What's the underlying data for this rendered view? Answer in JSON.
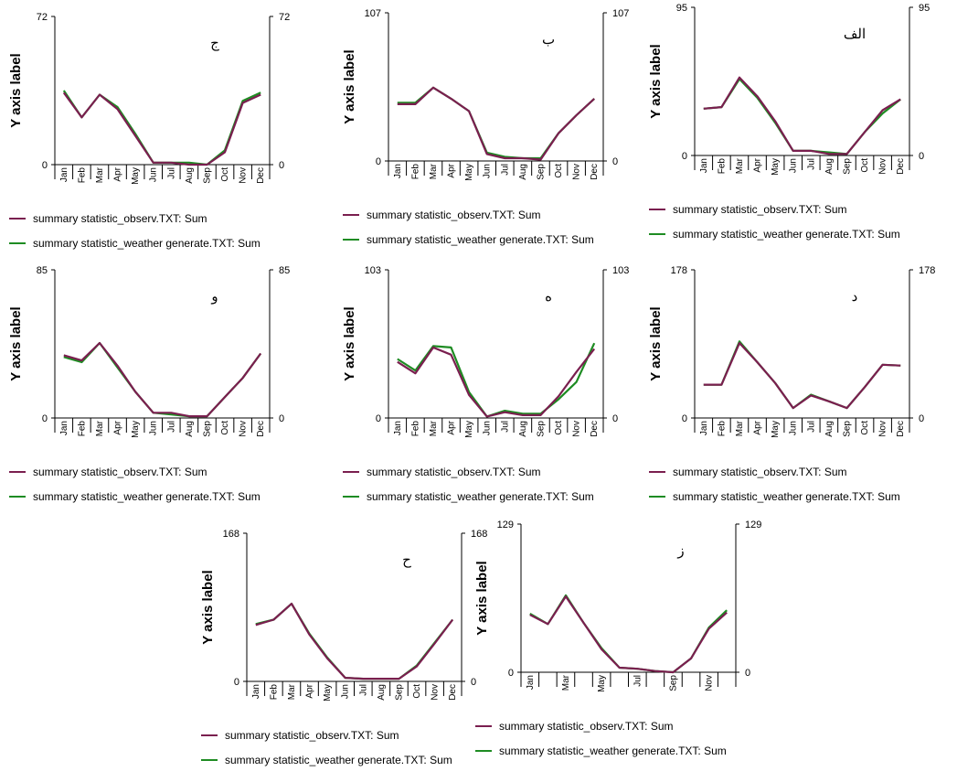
{
  "months": [
    "Jan",
    "Feb",
    "Mar",
    "Apr",
    "May",
    "Jun",
    "Jul",
    "Aug",
    "Sep",
    "Oct",
    "Nov",
    "Dec"
  ],
  "colors": {
    "observed": "#7a1f4f",
    "generated": "#1e8c23"
  },
  "chart_data": [
    {
      "type": "line",
      "panel_label": "ج",
      "ylabel": "Y axis label",
      "ylim": [
        0,
        72
      ],
      "y_ticks": [
        "0",
        "72"
      ],
      "y2_ticks": [
        "0",
        "72"
      ],
      "categories": [
        "Jan",
        "Feb",
        "Mar",
        "Apr",
        "May",
        "Jun",
        "Jul",
        "Aug",
        "Sep",
        "Oct",
        "Nov",
        "Dec"
      ],
      "legend_placement": "bottom",
      "series": [
        {
          "name": "summary statistic_observ.TXT: Sum",
          "color": "#7a1f4f",
          "values": [
            35,
            23,
            34,
            27,
            14,
            1,
            1,
            0,
            0,
            6,
            30,
            34
          ]
        },
        {
          "name": "summary statistic_weather generate.TXT: Sum",
          "color": "#1e8c23",
          "values": [
            36,
            23,
            34,
            28,
            15,
            1,
            1,
            1,
            0,
            7,
            31,
            35
          ]
        }
      ]
    },
    {
      "type": "line",
      "panel_label": "ب",
      "ylabel": "Y axis label",
      "ylim": [
        0,
        107
      ],
      "y_ticks": [
        "0",
        "107"
      ],
      "y2_ticks": [
        "0",
        "107"
      ],
      "categories": [
        "Jan",
        "Feb",
        "Mar",
        "Apr",
        "May",
        "Jun",
        "Jul",
        "Aug",
        "Sep",
        "Oct",
        "Nov",
        "Dec"
      ],
      "legend_placement": "bottom",
      "series": [
        {
          "name": "summary statistic_observ.TXT: Sum",
          "color": "#7a1f4f",
          "values": [
            41,
            41,
            53,
            45,
            36,
            5,
            2,
            2,
            1,
            20,
            33,
            45
          ]
        },
        {
          "name": "summary statistic_weather generate.TXT: Sum",
          "color": "#1e8c23",
          "values": [
            42,
            42,
            53,
            45,
            36,
            6,
            3,
            2,
            2,
            20,
            33,
            45
          ]
        }
      ]
    },
    {
      "type": "line",
      "panel_label": "الف",
      "ylabel": "Y axis label",
      "ylim": [
        0,
        95
      ],
      "y_ticks": [
        "0",
        "95"
      ],
      "y2_ticks": [
        "0",
        "95"
      ],
      "categories": [
        "Jan",
        "Feb",
        "Mar",
        "Apr",
        "May",
        "Jun",
        "Jul",
        "Aug",
        "Sep",
        "Oct",
        "Nov",
        "Dec"
      ],
      "legend_placement": "bottom",
      "series": [
        {
          "name": "summary statistic_observ.TXT: Sum",
          "color": "#7a1f4f",
          "values": [
            30,
            31,
            50,
            38,
            22,
            3,
            3,
            1,
            1,
            15,
            29,
            36
          ]
        },
        {
          "name": "summary statistic_weather generate.TXT: Sum",
          "color": "#1e8c23",
          "values": [
            30,
            31,
            49,
            37,
            21,
            3,
            3,
            2,
            1,
            15,
            27,
            36
          ]
        }
      ]
    },
    {
      "type": "line",
      "panel_label": "و",
      "ylabel": "Y axis label",
      "ylim": [
        0,
        85
      ],
      "y_ticks": [
        "0",
        "85"
      ],
      "y2_ticks": [
        "0",
        "85"
      ],
      "categories": [
        "Jan",
        "Feb",
        "Mar",
        "Apr",
        "May",
        "Jun",
        "Jul",
        "Aug",
        "Sep",
        "Oct",
        "Nov",
        "Dec"
      ],
      "legend_placement": "bottom",
      "series": [
        {
          "name": "summary statistic_observ.TXT: Sum",
          "color": "#7a1f4f",
          "values": [
            36,
            33,
            43,
            30,
            15,
            3,
            3,
            1,
            1,
            12,
            23,
            37
          ]
        },
        {
          "name": "summary statistic_weather generate.TXT: Sum",
          "color": "#1e8c23",
          "values": [
            35,
            32,
            43,
            29,
            15,
            3,
            2,
            1,
            1,
            12,
            23,
            37
          ]
        }
      ]
    },
    {
      "type": "line",
      "panel_label": "ه",
      "ylabel": "Y axis label",
      "ylim": [
        0,
        103
      ],
      "y_ticks": [
        "0",
        "103"
      ],
      "y2_ticks": [
        "0",
        "103"
      ],
      "categories": [
        "Jan",
        "Feb",
        "Mar",
        "Apr",
        "May",
        "Jun",
        "Jul",
        "Aug",
        "Sep",
        "Oct",
        "Nov",
        "Dec"
      ],
      "legend_placement": "bottom",
      "series": [
        {
          "name": "summary statistic_observ.TXT: Sum",
          "color": "#7a1f4f",
          "values": [
            39,
            31,
            49,
            44,
            16,
            1,
            4,
            2,
            2,
            15,
            32,
            48
          ]
        },
        {
          "name": "summary statistic_weather generate.TXT: Sum",
          "color": "#1e8c23",
          "values": [
            41,
            33,
            50,
            49,
            18,
            1,
            5,
            3,
            3,
            13,
            25,
            52
          ]
        }
      ]
    },
    {
      "type": "line",
      "panel_label": "د",
      "ylabel": "Y axis label",
      "ylim": [
        0,
        178
      ],
      "y_ticks": [
        "0",
        "178"
      ],
      "y2_ticks": [
        "0",
        "178"
      ],
      "categories": [
        "Jan",
        "Feb",
        "Mar",
        "Apr",
        "May",
        "Jun",
        "Jul",
        "Aug",
        "Sep",
        "Oct",
        "Nov",
        "Dec"
      ],
      "legend_placement": "bottom",
      "series": [
        {
          "name": "summary statistic_observ.TXT: Sum",
          "color": "#7a1f4f",
          "values": [
            40,
            40,
            90,
            67,
            42,
            12,
            27,
            20,
            12,
            37,
            64,
            63
          ]
        },
        {
          "name": "summary statistic_weather generate.TXT: Sum",
          "color": "#1e8c23",
          "values": [
            40,
            40,
            92,
            67,
            42,
            12,
            28,
            20,
            12,
            37,
            64,
            63
          ]
        }
      ]
    },
    {
      "type": "line",
      "panel_label": "ح",
      "ylabel": "Y axis label",
      "ylim": [
        0,
        168
      ],
      "y_ticks": [
        "0",
        "168"
      ],
      "y2_ticks": [
        "0",
        "168"
      ],
      "categories": [
        "Jan",
        "Feb",
        "Mar",
        "Apr",
        "May",
        "Jun",
        "Jul",
        "Aug",
        "Sep",
        "Oct",
        "Nov",
        "Dec"
      ],
      "legend_placement": "bottom",
      "series": [
        {
          "name": "summary statistic_observ.TXT: Sum",
          "color": "#7a1f4f",
          "values": [
            64,
            70,
            88,
            53,
            26,
            4,
            3,
            3,
            3,
            17,
            43,
            70
          ]
        },
        {
          "name": "summary statistic_weather generate.TXT: Sum",
          "color": "#1e8c23",
          "values": [
            65,
            70,
            88,
            54,
            27,
            4,
            3,
            3,
            3,
            18,
            44,
            70
          ]
        }
      ]
    },
    {
      "type": "line",
      "panel_label": "ز",
      "ylabel": "Y axis label",
      "ylim": [
        0,
        129
      ],
      "y_ticks": [
        "0",
        "129"
      ],
      "y2_ticks": [
        "0",
        "129"
      ],
      "categories": [
        "Jan",
        "Feb",
        "Mar",
        "Apr",
        "May",
        "Jun",
        "Jul",
        "Aug",
        "Sep",
        "Oct",
        "Nov",
        "Dec"
      ],
      "tick_labels_shown": [
        "Jan",
        "",
        "Mar",
        "",
        "May",
        "",
        "Jul",
        "",
        "Sep",
        "",
        "Nov",
        ""
      ],
      "legend_placement": "bottom",
      "series": [
        {
          "name": "summary statistic_observ.TXT: Sum",
          "color": "#7a1f4f",
          "values": [
            50,
            42,
            66,
            43,
            20,
            4,
            3,
            1,
            0,
            12,
            38,
            52
          ]
        },
        {
          "name": "summary statistic_weather generate.TXT: Sum",
          "color": "#1e8c23",
          "values": [
            51,
            42,
            67,
            43,
            21,
            4,
            3,
            1,
            0,
            12,
            39,
            54
          ]
        }
      ]
    }
  ]
}
